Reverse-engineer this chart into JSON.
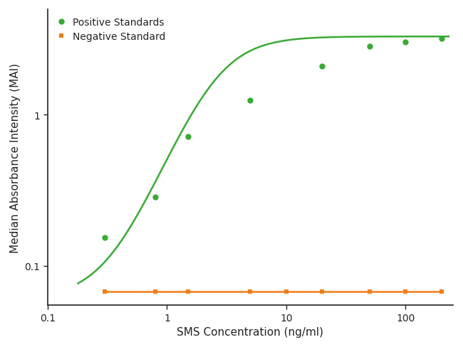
{
  "title": "",
  "xlabel": "SMS Concentration (ng/ml)",
  "ylabel": "Median Absorbance Intensity (MAI)",
  "xlim": [
    0.15,
    250
  ],
  "ylim": [
    0.055,
    5.0
  ],
  "positive_x": [
    0.3,
    0.8,
    1.5,
    5.0,
    20.0,
    50.0,
    100.0,
    200.0
  ],
  "positive_y": [
    0.155,
    0.285,
    0.72,
    1.25,
    2.1,
    2.85,
    3.05,
    3.2
  ],
  "negative_x": [
    0.3,
    0.8,
    1.5,
    5.0,
    10.0,
    20.0,
    50.0,
    100.0,
    200.0
  ],
  "negative_y": [
    0.068,
    0.068,
    0.068,
    0.068,
    0.068,
    0.068,
    0.068,
    0.068,
    0.068
  ],
  "positive_color": "#3aaa35",
  "negative_color": "#f07d1a",
  "bg_color": "#ffffff",
  "legend_pos": "upper left",
  "positive_label": "Positive Standards",
  "negative_label": "Negative Standard",
  "xtick_vals": [
    0.1,
    1,
    10,
    100
  ],
  "xtick_labels": [
    "0.1",
    "1",
    "10",
    "100"
  ],
  "ytick_vals": [
    0.1,
    1
  ],
  "ytick_labels": [
    "0.1",
    "1"
  ],
  "marker_size": 6,
  "line_width": 1.8,
  "axis_color": "#222222",
  "tick_fontsize": 10,
  "label_fontsize": 11
}
